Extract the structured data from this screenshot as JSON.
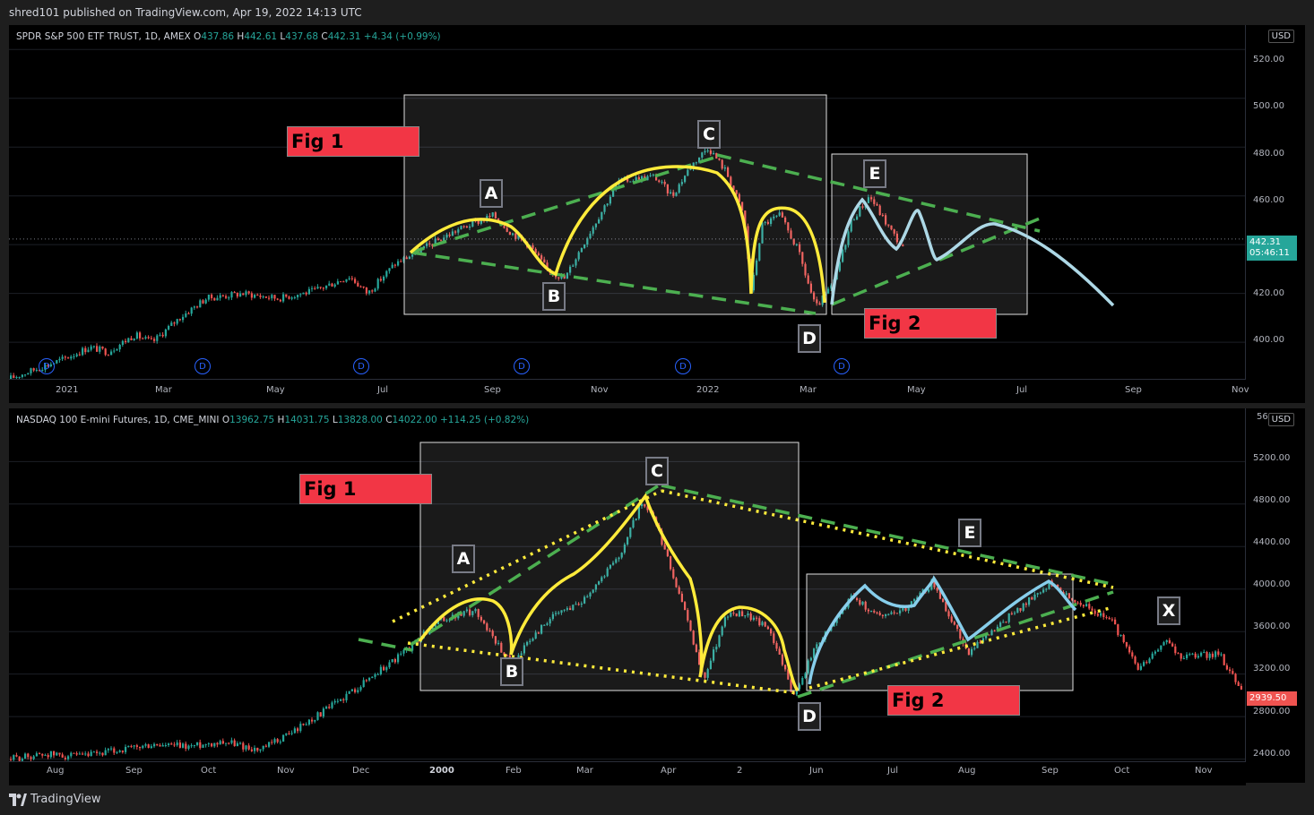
{
  "header": {
    "published": "shred101 published on TradingView.com, Apr 19, 2022 14:13 UTC"
  },
  "footer": {
    "brand": "TradingView"
  },
  "chart_data": [
    {
      "type": "candlestick",
      "symbol_line": "SPDR S&P 500 ETF TRUST, 1D, AMEX",
      "ohlc": {
        "O": "437.86",
        "H": "442.61",
        "L": "437.68",
        "C": "442.31",
        "change": "+4.34 (+0.99%)"
      },
      "labels": {
        "O": "O",
        "H": "H",
        "L": "L",
        "C": "C"
      },
      "currency": "USD",
      "price_axis": [
        "520.00",
        "500.00",
        "480.00",
        "460.00",
        "440.00",
        "420.00",
        "400.00"
      ],
      "ylim": [
        385,
        530
      ],
      "last_price": {
        "value": "442.31",
        "countdown": "05:46:11",
        "color": "#26a69a"
      },
      "time_axis": [
        "2021",
        "Mar",
        "May",
        "Jul",
        "Sep",
        "Nov",
        "2022",
        "Mar",
        "May",
        "Jul",
        "Sep",
        "Nov"
      ],
      "annotations": {
        "fig1": "Fig 1",
        "fig2": "Fig 2",
        "points": [
          "A",
          "B",
          "C",
          "D",
          "E"
        ],
        "dividend_marker": "D"
      },
      "price_path": [
        [
          0,
          385
        ],
        [
          30,
          389
        ],
        [
          60,
          393
        ],
        [
          90,
          398
        ],
        [
          110,
          396
        ],
        [
          140,
          403
        ],
        [
          160,
          400
        ],
        [
          190,
          410
        ],
        [
          220,
          418
        ],
        [
          260,
          420
        ],
        [
          300,
          418
        ],
        [
          340,
          421
        ],
        [
          380,
          427
        ],
        [
          400,
          420
        ],
        [
          430,
          432
        ],
        [
          460,
          438
        ],
        [
          500,
          446
        ],
        [
          540,
          452
        ],
        [
          560,
          445
        ],
        [
          580,
          440
        ],
        [
          600,
          430
        ],
        [
          620,
          426
        ],
        [
          640,
          440
        ],
        [
          680,
          466
        ],
        [
          720,
          468
        ],
        [
          740,
          460
        ],
        [
          760,
          472
        ],
        [
          780,
          480
        ],
        [
          800,
          470
        ],
        [
          820,
          452
        ],
        [
          828,
          420
        ],
        [
          840,
          448
        ],
        [
          860,
          452
        ],
        [
          880,
          438
        ],
        [
          900,
          414
        ],
        [
          920,
          424
        ],
        [
          940,
          450
        ],
        [
          960,
          460
        ],
        [
          980,
          448
        ],
        [
          1000,
          437
        ]
      ],
      "colors": {
        "up": "#26a69a",
        "down": "#ef5350",
        "hump": "#ffeb3b",
        "projection": "#add8e6",
        "trend": "#4caf50"
      }
    },
    {
      "type": "candlestick",
      "symbol_line": "NASDAQ 100 E-mini Futures, 1D, CME_MINI",
      "ohlc": {
        "O": "13962.75",
        "H": "14031.75",
        "L": "13828.00",
        "C": "14022.00",
        "change": "+114.25 (+0.82%)"
      },
      "labels": {
        "O": "O",
        "H": "H",
        "L": "L",
        "C": "C"
      },
      "currency": "USD",
      "price_axis": [
        "5600.00",
        "5200.00",
        "4800.00",
        "4400.00",
        "4000.00",
        "3600.00",
        "3200.00",
        "2800.00",
        "2400.00"
      ],
      "ylim": [
        2380,
        5700
      ],
      "last_price": {
        "value": "2939.50",
        "color": "#ef5350"
      },
      "time_axis": [
        "Aug",
        "Sep",
        "Oct",
        "Nov",
        "Dec",
        "2000",
        "Feb",
        "Mar",
        "Apr",
        "2",
        "Jun",
        "Jul",
        "Aug",
        "Sep",
        "Oct",
        "Nov"
      ],
      "annotations": {
        "fig1": "Fig 1",
        "fig2": "Fig 2",
        "points": [
          "A",
          "B",
          "C",
          "D",
          "E",
          "X"
        ]
      },
      "price_path": [
        [
          0,
          2400
        ],
        [
          40,
          2450
        ],
        [
          80,
          2420
        ],
        [
          120,
          2480
        ],
        [
          160,
          2530
        ],
        [
          200,
          2520
        ],
        [
          240,
          2570
        ],
        [
          280,
          2480
        ],
        [
          320,
          2680
        ],
        [
          360,
          2900
        ],
        [
          400,
          3150
        ],
        [
          440,
          3400
        ],
        [
          480,
          3700
        ],
        [
          520,
          3800
        ],
        [
          560,
          3300
        ],
        [
          600,
          3700
        ],
        [
          640,
          3900
        ],
        [
          680,
          4300
        ],
        [
          705,
          4800
        ],
        [
          720,
          4650
        ],
        [
          750,
          3900
        ],
        [
          775,
          3150
        ],
        [
          800,
          3750
        ],
        [
          820,
          3780
        ],
        [
          850,
          3600
        ],
        [
          875,
          3000
        ],
        [
          900,
          3450
        ],
        [
          940,
          3930
        ],
        [
          970,
          3750
        ],
        [
          1000,
          3820
        ],
        [
          1030,
          4060
        ],
        [
          1070,
          3400
        ],
        [
          1110,
          3700
        ],
        [
          1160,
          4050
        ],
        [
          1190,
          3900
        ],
        [
          1230,
          3700
        ],
        [
          1260,
          3250
        ],
        [
          1290,
          3500
        ],
        [
          1310,
          3350
        ],
        [
          1350,
          3400
        ],
        [
          1380,
          2950
        ]
      ],
      "colors": {
        "up": "#26a69a",
        "down": "#ef5350",
        "hump": "#ffeb3b",
        "projection": "#87ceeb",
        "trend": "#4caf50",
        "dotted": "#ffeb3b"
      }
    }
  ]
}
